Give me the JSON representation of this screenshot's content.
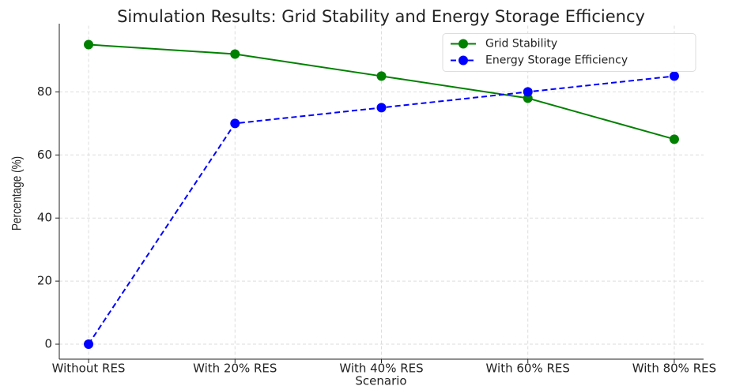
{
  "chart_data": {
    "type": "line",
    "title": "Simulation Results: Grid Stability and Energy Storage Efficiency",
    "xlabel": "Scenario",
    "ylabel": "Percentage (%)",
    "categories": [
      "Without RES",
      "With 20% RES",
      "With 40% RES",
      "With 60% RES",
      "With 80% RES"
    ],
    "series": [
      {
        "name": "Grid Stability",
        "color": "#008000",
        "linestyle": "solid",
        "values": [
          95,
          92,
          85,
          78,
          65
        ]
      },
      {
        "name": "Energy Storage Efficiency",
        "color": "#0000ff",
        "linestyle": "dashed",
        "values": [
          0,
          70,
          75,
          80,
          85
        ]
      }
    ],
    "ylim": [
      -4.75,
      99.75
    ],
    "yticks": [
      0,
      20,
      40,
      60,
      80
    ],
    "grid": true,
    "legend": "upper right"
  }
}
